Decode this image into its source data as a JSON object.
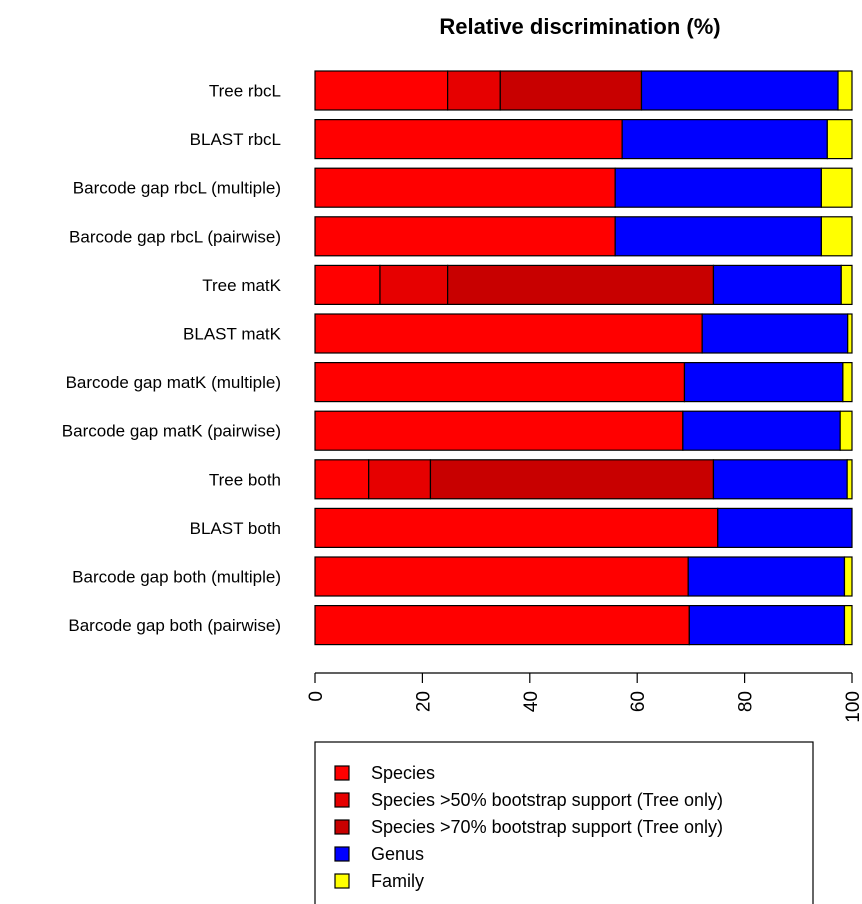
{
  "chart_data": {
    "type": "bar",
    "orientation": "horizontal",
    "stacked": true,
    "title": "Relative discrimination (%)",
    "xlabel": "",
    "ylabel": "",
    "xlim": [
      0,
      100
    ],
    "x_ticks": [
      "0",
      "20",
      "40",
      "60",
      "80",
      "100"
    ],
    "categories": [
      "Tree rbcL",
      "BLAST rbcL",
      "Barcode gap rbcL (multiple)",
      "Barcode gap rbcL (pairwise)",
      "Tree matK",
      "BLAST matK",
      "Barcode gap matK (multiple)",
      "Barcode gap matK (pairwise)",
      "Tree both",
      "BLAST both",
      "Barcode gap both (multiple)",
      "Barcode gap both (pairwise)"
    ],
    "series": [
      {
        "name": "Species",
        "color": "#ff0000",
        "values": [
          24.7,
          57.2,
          55.9,
          55.9,
          12.1,
          72.1,
          68.8,
          68.5,
          10.0,
          75.0,
          69.5,
          69.7
        ]
      },
      {
        "name": "Species >50% bootstrap support (Tree only)",
        "color": "#e60000",
        "values": [
          9.8,
          0,
          0,
          0,
          12.6,
          0,
          0,
          0,
          11.5,
          0,
          0,
          0
        ]
      },
      {
        "name": "Species >70% bootstrap support (Tree only)",
        "color": "#c80000",
        "values": [
          26.3,
          0,
          0,
          0,
          49.5,
          0,
          0,
          0,
          52.7,
          0,
          0,
          0
        ]
      },
      {
        "name": "Genus",
        "color": "#0000ff",
        "values": [
          36.6,
          38.2,
          38.4,
          38.4,
          23.8,
          27.1,
          29.5,
          29.3,
          24.9,
          25.0,
          29.1,
          28.9
        ]
      },
      {
        "name": "Family",
        "color": "#ffff00",
        "values": [
          2.6,
          4.6,
          5.7,
          5.7,
          2.0,
          0.8,
          1.7,
          2.2,
          0.9,
          0.0,
          1.4,
          1.4
        ]
      }
    ],
    "legend": [
      {
        "label": "Species",
        "color": "#ff0000"
      },
      {
        "label": "Species >50% bootstrap support (Tree only)",
        "color": "#e60000"
      },
      {
        "label": "Species >70% bootstrap support (Tree only)",
        "color": "#c80000"
      },
      {
        "label": "Genus",
        "color": "#0000ff"
      },
      {
        "label": "Family",
        "color": "#ffff00"
      }
    ],
    "legend_position": "bottom",
    "grid": false
  }
}
